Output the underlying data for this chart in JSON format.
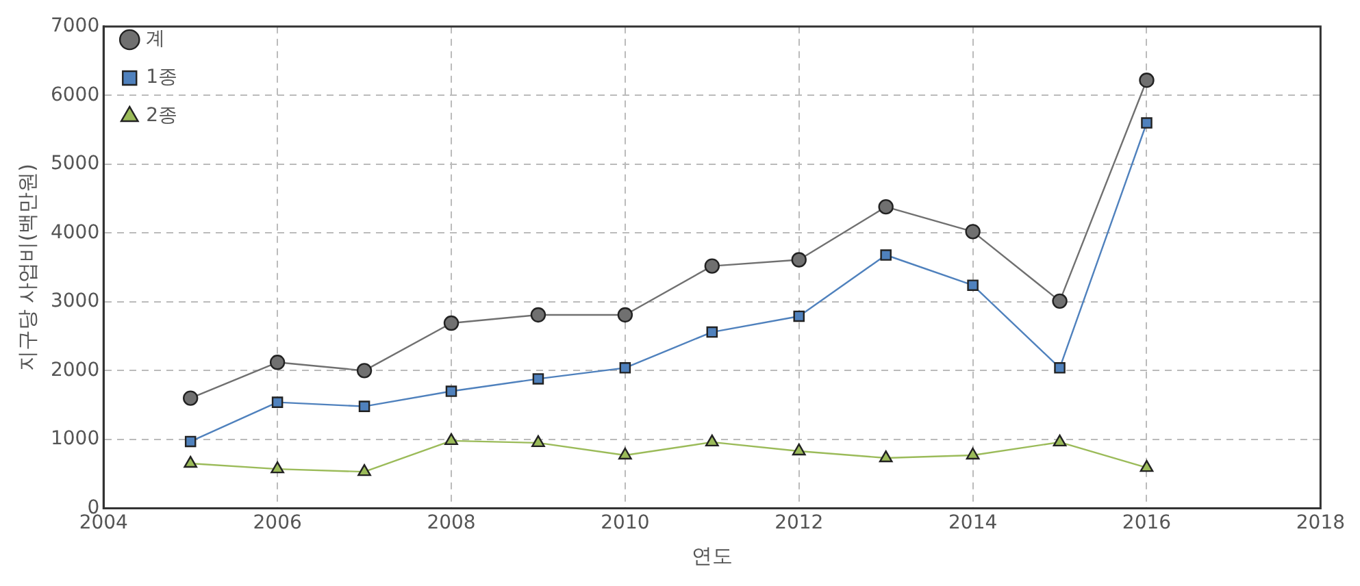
{
  "chart_data": {
    "type": "line",
    "xlabel": "연도",
    "ylabel": "지구당 사업비(백만원)",
    "x": [
      2005,
      2006,
      2007,
      2008,
      2009,
      2010,
      2011,
      2012,
      2013,
      2014,
      2015,
      2016
    ],
    "series": [
      {
        "name": "계",
        "color": "#707070",
        "marker": "circle",
        "values": [
          1600,
          2120,
          2000,
          2690,
          2810,
          2810,
          3520,
          3610,
          4380,
          4020,
          3010,
          6220
        ]
      },
      {
        "name": "1종",
        "color": "#4f81bd",
        "marker": "square",
        "values": [
          970,
          1540,
          1480,
          1700,
          1880,
          2040,
          2560,
          2790,
          3680,
          3240,
          2040,
          5600
        ]
      },
      {
        "name": "2종",
        "color": "#9bbb59",
        "marker": "triangle",
        "values": [
          650,
          570,
          530,
          980,
          950,
          770,
          960,
          830,
          730,
          770,
          960,
          590
        ]
      }
    ],
    "xlim": [
      2004,
      2018
    ],
    "xticks": [
      2004,
      2006,
      2008,
      2010,
      2012,
      2014,
      2016,
      2018
    ],
    "ylim": [
      0,
      7000
    ],
    "yticks": [
      0,
      1000,
      2000,
      3000,
      4000,
      5000,
      6000,
      7000
    ],
    "grid": true,
    "legend": "top left",
    "line_style": "solid"
  }
}
